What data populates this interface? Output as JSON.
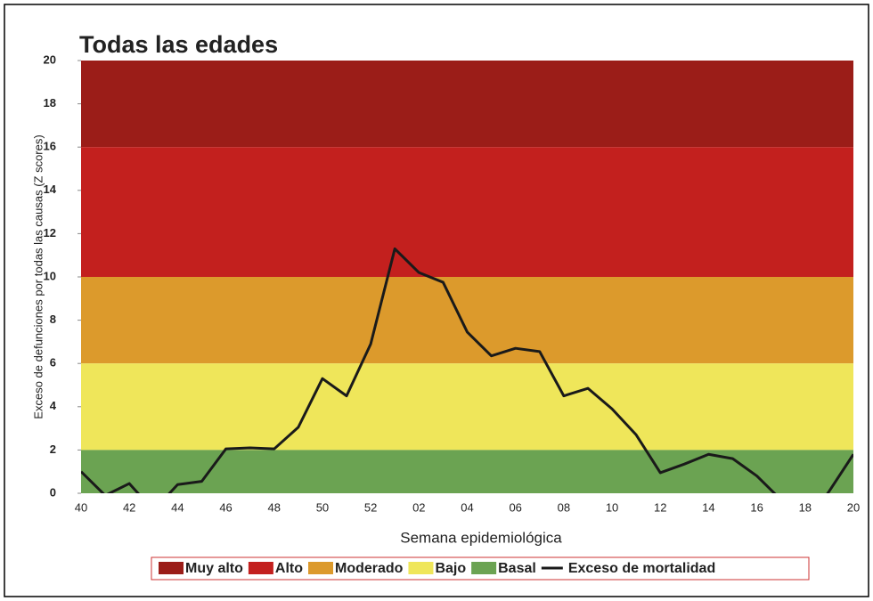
{
  "chart_data": {
    "type": "line",
    "title": "Todas las edades",
    "xlabel": "Semana epidemiológica",
    "ylabel": "Exceso de defunciones por todas las causas (Z scores)",
    "categories": [
      "40",
      null,
      "42",
      null,
      "44",
      null,
      "46",
      null,
      "48",
      null,
      "50",
      null,
      "52",
      null,
      "02",
      null,
      "04",
      null,
      "06",
      null,
      "08",
      null,
      "10",
      null,
      "12",
      null,
      "14",
      null,
      "16",
      null,
      "18",
      null,
      "20"
    ],
    "ylim": [
      0,
      20
    ],
    "yticks": [
      0,
      2,
      4,
      6,
      8,
      10,
      12,
      14,
      16,
      18,
      20
    ],
    "bands": [
      {
        "name": "Muy alto",
        "color": "#9b1d18",
        "from": 16,
        "to": 20
      },
      {
        "name": "Alto",
        "color": "#c3201e",
        "from": 10,
        "to": 16
      },
      {
        "name": "Moderado",
        "color": "#dc9a2c",
        "from": 6,
        "to": 10
      },
      {
        "name": "Bajo",
        "color": "#efe65a",
        "from": 2,
        "to": 6
      },
      {
        "name": "Basal",
        "color": "#6ba352",
        "from": 0,
        "to": 2
      }
    ],
    "series": [
      {
        "name": "Exceso de mortalidad",
        "color": "#1a1a1a",
        "values": [
          1.0,
          -0.1,
          0.45,
          -0.8,
          0.4,
          0.55,
          2.05,
          2.1,
          2.05,
          3.05,
          5.3,
          4.5,
          6.9,
          11.3,
          10.2,
          9.75,
          7.45,
          6.35,
          6.7,
          6.55,
          4.5,
          4.85,
          3.9,
          2.7,
          0.95,
          1.35,
          1.8,
          1.6,
          0.8,
          -0.3,
          -1.5,
          0.1,
          1.8
        ]
      }
    ]
  }
}
